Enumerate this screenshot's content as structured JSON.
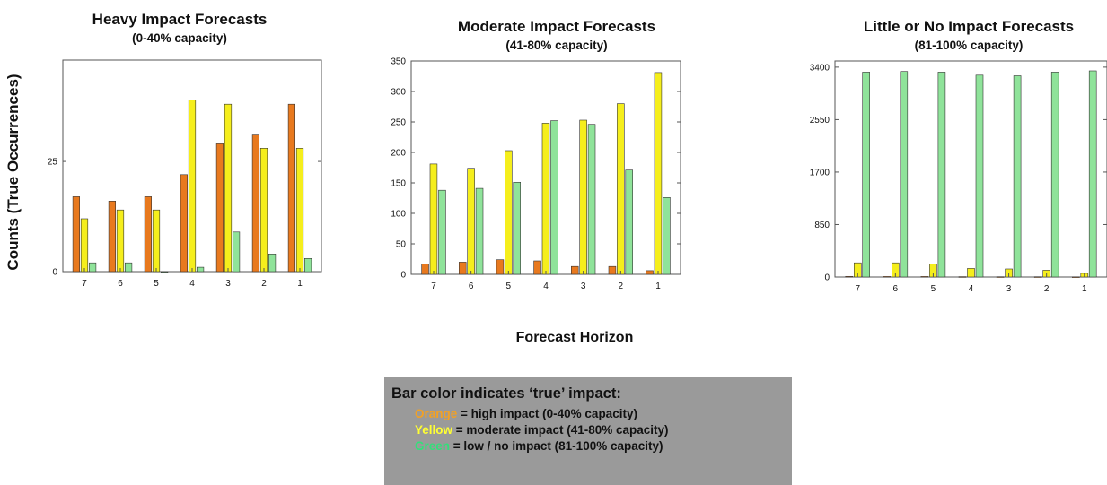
{
  "axis_titles": {
    "y": "Counts (True Occurrences)",
    "x": "Forecast Horizon"
  },
  "legend": {
    "title": "Bar color indicates ‘true’ impact:",
    "items": [
      {
        "color_word": "Orange",
        "text": " = high impact (0-40% capacity)",
        "color": "#f2a124"
      },
      {
        "color_word": "Yellow",
        "text": " = moderate impact (41-80% capacity)",
        "color": "#ffff33"
      },
      {
        "color_word": "Green",
        "text": " = low / no impact (81-100% capacity)",
        "color": "#33e07a"
      }
    ]
  },
  "colors": {
    "orange": "#e8791e",
    "yellow": "#f5ee1c",
    "green": "#8fe39a",
    "bar_stroke": "#333333",
    "axis": "#555555"
  },
  "chart_data": [
    {
      "type": "bar",
      "title": "Heavy Impact Forecasts",
      "subtitle": "(0-40% capacity)",
      "categories": [
        "7",
        "6",
        "5",
        "4",
        "3",
        "2",
        "1"
      ],
      "ylim": [
        0,
        48
      ],
      "yticks": [
        0,
        25
      ],
      "series": [
        {
          "name": "Orange",
          "values": [
            17,
            16,
            17,
            22,
            29,
            31,
            38
          ]
        },
        {
          "name": "Yellow",
          "values": [
            12,
            14,
            14,
            39,
            38,
            28,
            28
          ]
        },
        {
          "name": "Green",
          "values": [
            2,
            2,
            0,
            1,
            9,
            4,
            3
          ]
        }
      ]
    },
    {
      "type": "bar",
      "title": "Moderate Impact Forecasts",
      "subtitle": "(41-80% capacity)",
      "categories": [
        "7",
        "6",
        "5",
        "4",
        "3",
        "2",
        "1"
      ],
      "ylim": [
        0,
        350
      ],
      "yticks": [
        0,
        50,
        100,
        150,
        200,
        250,
        300,
        350
      ],
      "series": [
        {
          "name": "Orange",
          "values": [
            17,
            20,
            24,
            22,
            13,
            13,
            6
          ]
        },
        {
          "name": "Yellow",
          "values": [
            181,
            174,
            203,
            248,
            253,
            280,
            331
          ]
        },
        {
          "name": "Green",
          "values": [
            138,
            141,
            151,
            252,
            246,
            171,
            126
          ]
        }
      ]
    },
    {
      "type": "bar",
      "title": "Little or No Impact Forecasts",
      "subtitle": "(81-100% capacity)",
      "categories": [
        "7",
        "6",
        "5",
        "4",
        "3",
        "2",
        "1"
      ],
      "ylim": [
        0,
        3500
      ],
      "yticks": [
        0,
        850,
        1700,
        2550,
        3400
      ],
      "series": [
        {
          "name": "Orange",
          "values": [
            10,
            8,
            8,
            6,
            5,
            5,
            3
          ]
        },
        {
          "name": "Yellow",
          "values": [
            230,
            230,
            210,
            140,
            130,
            110,
            60
          ]
        },
        {
          "name": "Green",
          "values": [
            3320,
            3330,
            3320,
            3270,
            3260,
            3320,
            3340
          ]
        }
      ]
    }
  ]
}
